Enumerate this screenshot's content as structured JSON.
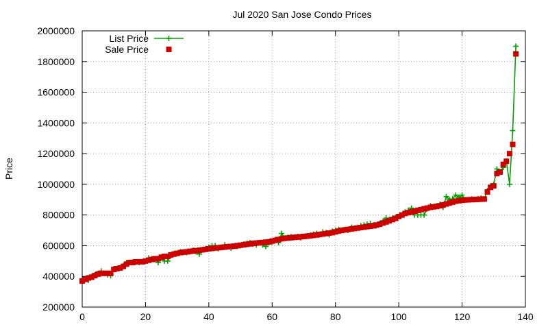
{
  "chart_data": {
    "type": "line",
    "title": "Jul 2020 San Jose Condo Prices",
    "xlabel": "",
    "ylabel": "Price",
    "xlim": [
      0,
      140
    ],
    "ylim": [
      200000,
      2000000
    ],
    "xticks": [
      0,
      20,
      40,
      60,
      80,
      100,
      120,
      140
    ],
    "yticks": [
      200000,
      400000,
      600000,
      800000,
      1000000,
      1200000,
      1400000,
      1600000,
      1800000,
      2000000
    ],
    "xtick_labels": [
      "0",
      "20",
      "40",
      "60",
      "80",
      "100",
      "120",
      "140"
    ],
    "ytick_labels": [
      "200000",
      "400000",
      "600000",
      "800000",
      "1000000",
      "1200000",
      "1400000",
      "1600000",
      "1800000",
      "2000000"
    ],
    "grid": true,
    "legend_position": "top-left",
    "colors": {
      "list": "#00a000",
      "sale": "#cc0000"
    },
    "series": [
      {
        "name": "List Price",
        "style": "line-plus",
        "x": [
          0,
          1,
          2,
          3,
          4,
          5,
          6,
          7,
          8,
          9,
          10,
          11,
          12,
          13,
          14,
          15,
          16,
          17,
          18,
          19,
          20,
          21,
          22,
          23,
          24,
          25,
          26,
          27,
          28,
          29,
          30,
          31,
          32,
          33,
          34,
          35,
          36,
          37,
          38,
          39,
          40,
          41,
          42,
          43,
          44,
          45,
          46,
          47,
          48,
          49,
          50,
          51,
          52,
          53,
          54,
          55,
          56,
          57,
          58,
          59,
          60,
          61,
          62,
          63,
          64,
          65,
          66,
          67,
          68,
          69,
          70,
          71,
          72,
          73,
          74,
          75,
          76,
          77,
          78,
          79,
          80,
          81,
          82,
          83,
          84,
          85,
          86,
          87,
          88,
          89,
          90,
          91,
          92,
          93,
          94,
          95,
          96,
          97,
          98,
          99,
          100,
          101,
          102,
          103,
          104,
          105,
          106,
          107,
          108,
          109,
          110,
          111,
          112,
          113,
          114,
          115,
          116,
          117,
          118,
          119,
          120,
          121,
          122,
          123,
          124,
          125,
          126,
          127,
          128,
          129,
          130,
          131,
          132,
          133,
          134,
          135,
          136,
          137
        ],
        "y": [
          370000,
          380000,
          375000,
          400000,
          410000,
          420000,
          435000,
          420000,
          410000,
          405000,
          450000,
          450000,
          455000,
          470000,
          490000,
          490000,
          495000,
          495000,
          490000,
          495000,
          500000,
          520000,
          515000,
          510000,
          490000,
          520000,
          500000,
          500000,
          535000,
          550000,
          550000,
          560000,
          555000,
          555000,
          560000,
          570000,
          560000,
          545000,
          575000,
          580000,
          590000,
          600000,
          600000,
          580000,
          590000,
          605000,
          595000,
          585000,
          595000,
          595000,
          600000,
          610000,
          615000,
          620000,
          610000,
          605000,
          620000,
          605000,
          595000,
          620000,
          625000,
          640000,
          620000,
          680000,
          650000,
          655000,
          660000,
          655000,
          660000,
          650000,
          660000,
          665000,
          670000,
          675000,
          680000,
          670000,
          690000,
          685000,
          670000,
          695000,
          700000,
          705000,
          700000,
          705000,
          700000,
          720000,
          715000,
          720000,
          730000,
          735000,
          740000,
          745000,
          735000,
          730000,
          745000,
          760000,
          780000,
          770000,
          780000,
          785000,
          790000,
          800000,
          820000,
          830000,
          845000,
          800000,
          800000,
          800000,
          800000,
          840000,
          860000,
          855000,
          860000,
          870000,
          850000,
          920000,
          900000,
          905000,
          930000,
          915000,
          930000,
          900000,
          900000,
          905000,
          900000,
          905000,
          910000,
          905000,
          960000,
          990000,
          1000000,
          1100000,
          1080000,
          1110000,
          1150000,
          1000000,
          1350000,
          1900000
        ]
      },
      {
        "name": "Sale Price",
        "style": "square",
        "x": [
          0,
          1,
          2,
          3,
          4,
          5,
          6,
          7,
          8,
          9,
          10,
          11,
          12,
          13,
          14,
          15,
          16,
          17,
          18,
          19,
          20,
          21,
          22,
          23,
          24,
          25,
          26,
          27,
          28,
          29,
          30,
          31,
          32,
          33,
          34,
          35,
          36,
          37,
          38,
          39,
          40,
          41,
          42,
          43,
          44,
          45,
          46,
          47,
          48,
          49,
          50,
          51,
          52,
          53,
          54,
          55,
          56,
          57,
          58,
          59,
          60,
          61,
          62,
          63,
          64,
          65,
          66,
          67,
          68,
          69,
          70,
          71,
          72,
          73,
          74,
          75,
          76,
          77,
          78,
          79,
          80,
          81,
          82,
          83,
          84,
          85,
          86,
          87,
          88,
          89,
          90,
          91,
          92,
          93,
          94,
          95,
          96,
          97,
          98,
          99,
          100,
          101,
          102,
          103,
          104,
          105,
          106,
          107,
          108,
          109,
          110,
          111,
          112,
          113,
          114,
          115,
          116,
          117,
          118,
          119,
          120,
          121,
          122,
          123,
          124,
          125,
          126,
          127,
          128,
          129,
          130,
          131,
          132,
          133,
          134,
          135,
          136,
          137
        ],
        "y": [
          370000,
          380000,
          390000,
          395000,
          405000,
          415000,
          420000,
          420000,
          420000,
          420000,
          445000,
          450000,
          455000,
          465000,
          480000,
          490000,
          490000,
          495000,
          495000,
          495000,
          500000,
          505000,
          510000,
          515000,
          515000,
          525000,
          530000,
          530000,
          540000,
          545000,
          550000,
          555000,
          558000,
          560000,
          563000,
          565000,
          568000,
          570000,
          573000,
          576000,
          580000,
          582000,
          585000,
          587000,
          589000,
          591000,
          593000,
          595000,
          597000,
          600000,
          603000,
          606000,
          609000,
          612000,
          615000,
          617000,
          619000,
          621000,
          623000,
          625000,
          630000,
          635000,
          640000,
          645000,
          648000,
          650000,
          652000,
          654000,
          656000,
          658000,
          660000,
          662000,
          664000,
          667000,
          670000,
          673000,
          676000,
          679000,
          682000,
          685000,
          690000,
          695000,
          700000,
          703000,
          706000,
          709000,
          712000,
          715000,
          718000,
          721000,
          724000,
          727000,
          730000,
          735000,
          740000,
          748000,
          755000,
          762000,
          770000,
          778000,
          790000,
          800000,
          810000,
          815000,
          820000,
          825000,
          830000,
          835000,
          840000,
          845000,
          850000,
          853000,
          856000,
          860000,
          866000,
          872000,
          878000,
          884000,
          890000,
          893000,
          896000,
          898000,
          899000,
          900000,
          901000,
          902000,
          903000,
          904000,
          950000,
          980000,
          990000,
          1070000,
          1080000,
          1130000,
          1150000,
          1200000,
          1260000,
          1850000
        ]
      }
    ]
  }
}
